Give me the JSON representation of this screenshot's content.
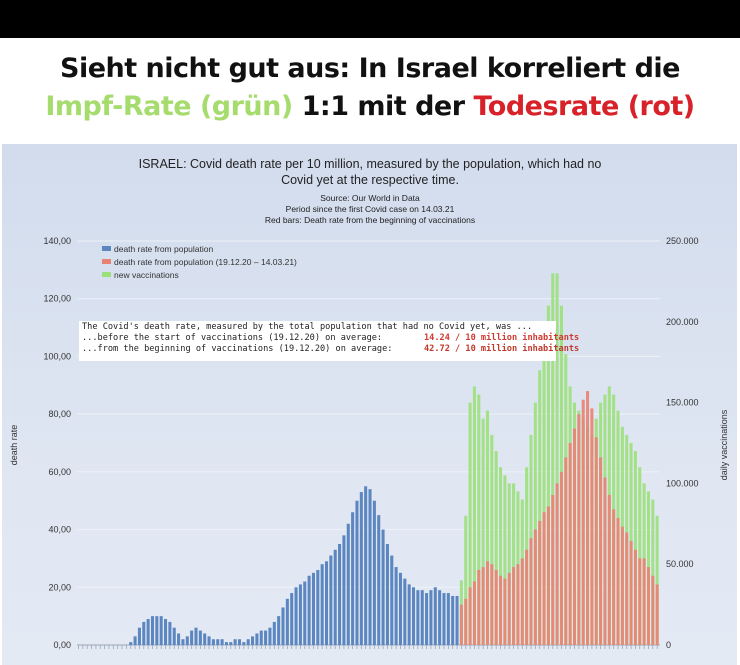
{
  "headline": {
    "line1": "Sieht nicht gut aus: In Israel korreliert die",
    "green_part": "Impf-Rate (grün)",
    "middle_part": " 1:1 mit der ",
    "red_part": "Todesrate (rot)"
  },
  "infobox": {
    "line1": "The Covid's death rate, measured by the total population that had no Covid yet, was ...",
    "line2": "...before the start of vaccinations (19.12.20) on average:",
    "value2": "14.24 / 10 million inhabitants",
    "line3": "...from the beginning of vaccinations (19.12.20) on average:",
    "value3": "42.72 / 10 million inhabitants"
  },
  "colors": {
    "blue_bars": "#5b86c0",
    "red_bars": "#e88373",
    "green_bars": "#9be07a",
    "headline_green": "#a6dc6e",
    "headline_red": "#d8222a"
  },
  "chart_data": {
    "type": "bar",
    "title": "ISRAEL: Covid death rate per 10 million, measured by the population, which had no Covid yet at the respective time.",
    "source_lines": [
      "Source: Our World in Data",
      "Period since the first Covid case on 14.03.21",
      "Red bars: Death rate from the beginning of vaccinations"
    ],
    "ylabel": "death rate",
    "y2label": "daily vaccinations",
    "ylim": [
      0,
      140
    ],
    "y2lim": [
      0,
      250000
    ],
    "yticks": [
      "0,00",
      "20,00",
      "40,00",
      "60,00",
      "80,00",
      "100,00",
      "120,00",
      "140,00"
    ],
    "y2ticks": [
      "0",
      "50.000",
      "100.000",
      "150.000",
      "200.000",
      "250.000"
    ],
    "legend_position": "top-left",
    "legend": [
      "death rate from population",
      "death rate from population (19.12.20 – 14.03.21)",
      "new vaccinations"
    ],
    "series": [
      {
        "name": "death rate from population",
        "color": "#5b86c0",
        "values": [
          0,
          0,
          0,
          0,
          0,
          0,
          0,
          0,
          0,
          0,
          0,
          0,
          1,
          3,
          6,
          8,
          9,
          10,
          10,
          10,
          9,
          8,
          6,
          4,
          2,
          3,
          5,
          6,
          5,
          4,
          3,
          2,
          2,
          2,
          1,
          1,
          2,
          2,
          1,
          2,
          3,
          4,
          5,
          5,
          6,
          8,
          10,
          13,
          16,
          18,
          20,
          21,
          22,
          24,
          25,
          26,
          28,
          29,
          31,
          33,
          35,
          38,
          42,
          46,
          50,
          53,
          55,
          54,
          50,
          45,
          40,
          35,
          31,
          27,
          25,
          23,
          21,
          20,
          19,
          19,
          18,
          19,
          20,
          19,
          18,
          18,
          17,
          17
        ]
      },
      {
        "name": "death rate from population (19.12.20 – 14.03.21)",
        "color": "#e88373",
        "values": [
          14,
          16,
          20,
          22,
          26,
          27,
          29,
          28,
          26,
          24,
          23,
          25,
          27,
          28,
          30,
          33,
          37,
          40,
          43,
          46,
          48,
          52,
          56,
          60,
          65,
          70,
          75,
          80,
          85,
          88,
          82,
          72,
          65,
          58,
          52,
          47,
          44,
          41,
          39,
          36,
          33,
          30,
          30,
          27,
          24,
          21
        ]
      },
      {
        "name": "new vaccinations",
        "color": "#9be07a",
        "values": [
          40000,
          80000,
          150000,
          160000,
          155000,
          140000,
          145000,
          130000,
          120000,
          110000,
          105000,
          100000,
          100000,
          95000,
          90000,
          110000,
          130000,
          150000,
          170000,
          190000,
          210000,
          230000,
          230000,
          210000,
          180000,
          160000,
          150000,
          145000,
          140000,
          135000,
          130000,
          140000,
          150000,
          155000,
          160000,
          155000,
          145000,
          135000,
          130000,
          125000,
          120000,
          110000,
          100000,
          95000,
          90000,
          80000
        ]
      }
    ]
  }
}
